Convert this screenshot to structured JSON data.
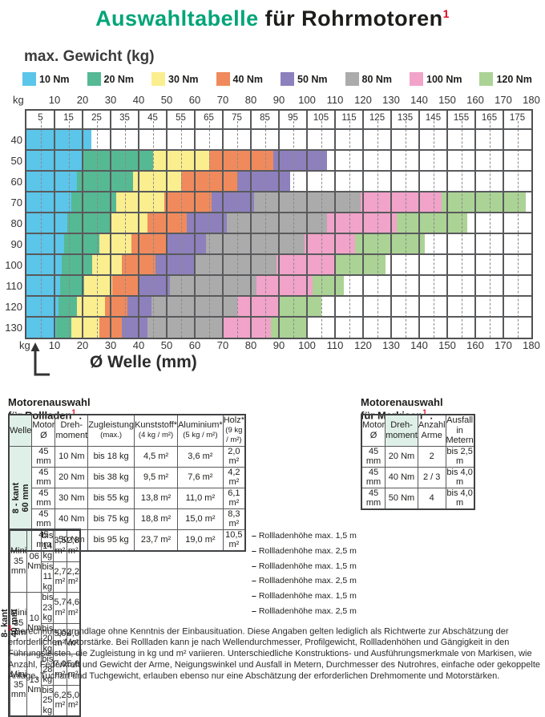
{
  "page": {
    "title_part1": "Auswahltabelle",
    "title_part2": " für Rohrmotoren",
    "title_marker": "1"
  },
  "chart_data": [
    {
      "type": "heatmap",
      "title": "max. Gewicht (kg)",
      "x_label": "Ø Welle (mm)",
      "row_unit": "kg",
      "x_range": [
        0,
        180
      ],
      "x_major_ticks": [
        10,
        20,
        30,
        40,
        50,
        60,
        70,
        80,
        90,
        100,
        110,
        120,
        130,
        140,
        150,
        160,
        170,
        180
      ],
      "x_minor_ticks": [
        5,
        15,
        25,
        35,
        45,
        55,
        65,
        75,
        85,
        95,
        105,
        115,
        125,
        135,
        145,
        155,
        165,
        175
      ],
      "grid": true,
      "legend_position": "top",
      "legend": [
        {
          "label": "10 Nm",
          "color": "#5bc5ea"
        },
        {
          "label": "20 Nm",
          "color": "#55b994"
        },
        {
          "label": "30 Nm",
          "color": "#fbee8e"
        },
        {
          "label": "40 Nm",
          "color": "#f08a5c"
        },
        {
          "label": "50 Nm",
          "color": "#8e80bd"
        },
        {
          "label": "80 Nm",
          "color": "#ababab"
        },
        {
          "label": "100 Nm",
          "color": "#f1a3c9"
        },
        {
          "label": "120 Nm",
          "color": "#abd395"
        }
      ],
      "rows": [
        {
          "weight": 40,
          "segments": [
            {
              "torque": "10 Nm",
              "from": 0,
              "to": 23
            }
          ]
        },
        {
          "weight": 50,
          "segments": [
            {
              "torque": "10 Nm",
              "from": 0,
              "to": 20
            },
            {
              "torque": "20 Nm",
              "from": 20,
              "to": 45
            },
            {
              "torque": "30 Nm",
              "from": 45,
              "to": 65
            },
            {
              "torque": "40 Nm",
              "from": 65,
              "to": 88
            },
            {
              "torque": "50 Nm",
              "from": 88,
              "to": 107
            }
          ]
        },
        {
          "weight": 60,
          "segments": [
            {
              "torque": "10 Nm",
              "from": 0,
              "to": 18
            },
            {
              "torque": "20 Nm",
              "from": 18,
              "to": 38
            },
            {
              "torque": "30 Nm",
              "from": 38,
              "to": 55
            },
            {
              "torque": "40 Nm",
              "from": 55,
              "to": 75
            },
            {
              "torque": "50 Nm",
              "from": 75,
              "to": 94
            }
          ]
        },
        {
          "weight": 70,
          "segments": [
            {
              "torque": "10 Nm",
              "from": 0,
              "to": 16
            },
            {
              "torque": "20 Nm",
              "from": 16,
              "to": 32
            },
            {
              "torque": "30 Nm",
              "from": 32,
              "to": 49
            },
            {
              "torque": "40 Nm",
              "from": 49,
              "to": 66
            },
            {
              "torque": "50 Nm",
              "from": 66,
              "to": 81
            },
            {
              "torque": "80 Nm",
              "from": 81,
              "to": 119
            },
            {
              "torque": "100 Nm",
              "from": 119,
              "to": 148
            },
            {
              "torque": "120 Nm",
              "from": 148,
              "to": 178
            }
          ]
        },
        {
          "weight": 80,
          "segments": [
            {
              "torque": "10 Nm",
              "from": 0,
              "to": 14.5
            },
            {
              "torque": "20 Nm",
              "from": 14.5,
              "to": 30
            },
            {
              "torque": "30 Nm",
              "from": 30,
              "to": 43
            },
            {
              "torque": "40 Nm",
              "from": 43,
              "to": 57
            },
            {
              "torque": "50 Nm",
              "from": 57,
              "to": 71.5
            },
            {
              "torque": "80 Nm",
              "from": 71.5,
              "to": 107
            },
            {
              "torque": "100 Nm",
              "from": 107,
              "to": 132
            },
            {
              "torque": "120 Nm",
              "from": 132,
              "to": 157
            }
          ]
        },
        {
          "weight": 90,
          "segments": [
            {
              "torque": "10 Nm",
              "from": 0,
              "to": 13.5
            },
            {
              "torque": "20 Nm",
              "from": 13.5,
              "to": 26
            },
            {
              "torque": "30 Nm",
              "from": 26,
              "to": 37.5
            },
            {
              "torque": "40 Nm",
              "from": 37.5,
              "to": 50
            },
            {
              "torque": "50 Nm",
              "from": 50,
              "to": 64
            },
            {
              "torque": "80 Nm",
              "from": 64,
              "to": 99
            },
            {
              "torque": "100 Nm",
              "from": 99,
              "to": 117
            },
            {
              "torque": "120 Nm",
              "from": 117,
              "to": 142
            }
          ]
        },
        {
          "weight": 100,
          "segments": [
            {
              "torque": "10 Nm",
              "from": 0,
              "to": 12.5
            },
            {
              "torque": "20 Nm",
              "from": 12.5,
              "to": 23.5
            },
            {
              "torque": "30 Nm",
              "from": 23.5,
              "to": 34
            },
            {
              "torque": "40 Nm",
              "from": 34,
              "to": 46
            },
            {
              "torque": "50 Nm",
              "from": 46,
              "to": 60
            },
            {
              "torque": "80 Nm",
              "from": 60,
              "to": 89
            },
            {
              "torque": "100 Nm",
              "from": 89,
              "to": 110
            },
            {
              "torque": "120 Nm",
              "from": 110,
              "to": 128
            }
          ]
        },
        {
          "weight": 110,
          "segments": [
            {
              "torque": "10 Nm",
              "from": 0,
              "to": 12
            },
            {
              "torque": "20 Nm",
              "from": 12,
              "to": 20.5
            },
            {
              "torque": "30 Nm",
              "from": 20.5,
              "to": 30.5
            },
            {
              "torque": "40 Nm",
              "from": 30.5,
              "to": 40
            },
            {
              "torque": "50 Nm",
              "from": 40,
              "to": 51
            },
            {
              "torque": "80 Nm",
              "from": 51,
              "to": 82
            },
            {
              "torque": "100 Nm",
              "from": 82,
              "to": 102
            },
            {
              "torque": "120 Nm",
              "from": 102,
              "to": 113
            }
          ]
        },
        {
          "weight": 120,
          "segments": [
            {
              "torque": "10 Nm",
              "from": 0,
              "to": 11.5
            },
            {
              "torque": "20 Nm",
              "from": 11.5,
              "to": 18
            },
            {
              "torque": "30 Nm",
              "from": 18,
              "to": 28
            },
            {
              "torque": "40 Nm",
              "from": 28,
              "to": 36
            },
            {
              "torque": "50 Nm",
              "from": 36,
              "to": 44.5
            },
            {
              "torque": "80 Nm",
              "from": 44.5,
              "to": 75
            },
            {
              "torque": "100 Nm",
              "from": 75,
              "to": 90
            },
            {
              "torque": "120 Nm",
              "from": 90,
              "to": 105
            }
          ]
        },
        {
          "weight": 130,
          "segments": [
            {
              "torque": "10 Nm",
              "from": 0,
              "to": 10.5
            },
            {
              "torque": "20 Nm",
              "from": 10.5,
              "to": 16
            },
            {
              "torque": "30 Nm",
              "from": 16,
              "to": 26
            },
            {
              "torque": "40 Nm",
              "from": 26,
              "to": 34
            },
            {
              "torque": "50 Nm",
              "from": 34,
              "to": 43
            },
            {
              "torque": "80 Nm",
              "from": 43,
              "to": 70
            },
            {
              "torque": "100 Nm",
              "from": 70,
              "to": 87
            },
            {
              "torque": "120 Nm",
              "from": 87,
              "to": 100
            }
          ]
        }
      ]
    },
    {
      "type": "table",
      "name": "rollladen",
      "title": "Motorenauswahl für Rollladen",
      "marker": "1",
      "title_suffix": " :",
      "columns": [
        [
          "Welle",
          ""
        ],
        [
          "Motor",
          "Ø"
        ],
        [
          "Dreh-",
          "moment"
        ],
        [
          "Zugleistung",
          "(max.)"
        ],
        [
          "Kunststoff*",
          "(4 kg / m²)"
        ],
        [
          "Aluminium*",
          "(5 kg / m²)"
        ],
        [
          "Holz*",
          "(9 kg / m²)"
        ]
      ],
      "group1": {
        "welle": [
          "8 - kant",
          "60 mm"
        ],
        "rows": [
          [
            "45 mm",
            "10 Nm",
            "bis 18 kg",
            "4,5 m²",
            "3,6 m²",
            "2,0 m²"
          ],
          [
            "45 mm",
            "20 Nm",
            "bis 38 kg",
            "9,5 m²",
            "7,6 m²",
            "4,2 m²"
          ],
          [
            "45 mm",
            "30 Nm",
            "bis 55 kg",
            "13,8 m²",
            "11,0 m²",
            "6,1 m²"
          ],
          [
            "45 mm",
            "40 Nm",
            "bis 75 kg",
            "18,8 m²",
            "15,0 m²",
            "8,3 m²"
          ],
          [
            "45 mm",
            "50 Nm",
            "bis 95 kg",
            "23,7 m²",
            "19,0 m²",
            "10,5 m²"
          ]
        ]
      },
      "group2": {
        "welle": [
          "8- kant",
          "40 mm"
        ],
        "blocks": [
          {
            "motor": [
              "Mini",
              "35 mm"
            ],
            "torque": "06 Nm",
            "rows": [
              [
                "bis 14 kg",
                "3,5 m²",
                "2,8 m²",
                "Rollladenhöhe max. 1,5 m"
              ],
              [
                "bis 11 kg",
                "2,7 m²",
                "2,2 m²",
                "Rollladenhöhe max. 2,5 m"
              ]
            ]
          },
          {
            "motor": [
              "Mini",
              "35 mm"
            ],
            "torque": "10 Nm",
            "rows": [
              [
                "bis 23 kg",
                "5,7 m²",
                "4,6 m²",
                "Rollladenhöhe max. 1,5 m"
              ],
              [
                "bis 20 kg",
                "5,0 m²",
                "4,0 m²",
                "Rollladenhöhe max. 2,5 m"
              ]
            ]
          },
          {
            "motor": [
              "Mini",
              "35 mm"
            ],
            "torque": "13 Nm",
            "rows": [
              [
                "bis 28 kg",
                "7,0 m²",
                "5,6 m²",
                "Rollladenhöhe max. 1,5 m"
              ],
              [
                "bis 25 kg",
                "6,2 m²",
                "5,0 m²",
                "Rollladenhöhe max. 2,5 m"
              ]
            ]
          }
        ]
      }
    },
    {
      "type": "table",
      "name": "markisen",
      "title": "Motorenauswahl für Markisen",
      "marker": "1",
      "title_suffix": " :",
      "columns": [
        [
          "Motor",
          "Ø"
        ],
        [
          "Dreh-",
          "moment"
        ],
        [
          "Anzahl",
          "Arme"
        ],
        [
          "Ausfall",
          "in Metern"
        ]
      ],
      "rows": [
        [
          "45 mm",
          "20 Nm",
          "2",
          "bis 2,5 m"
        ],
        [
          "45 mm",
          "40 Nm",
          "2 / 3",
          "bis 4,0 m"
        ],
        [
          "45 mm",
          "50 Nm",
          "4",
          "bis 4,0 m"
        ]
      ]
    }
  ],
  "footnote": {
    "marker": "1",
    "text": "Berechnungsgrundlage ohne Kenntnis der Einbausituation. Diese Angaben gelten lediglich als Richtwerte zur Abschätzung der erforderlichen Motorstärke. Bei Rollladen kann je nach Wellendurchmesser, Profilgewicht, Rollladenhöhen und Gängigkeit in den Führungsleisten, die Zugleistung in kg und m² variieren. Unterschiedliche Konstruktions- und Ausführungsmerkmale von Markisen, wie Anzahl, Federkraft und Gewicht der Arme, Neigungswinkel und Ausfall in Metern, Durchmesser des Nutrohres, einfache oder gekoppelte Anlage, Tuchart und Tuchgewicht, erlauben ebenso nur eine Abschätzung der erforderlichen Drehmomente und Motorstärken."
  }
}
